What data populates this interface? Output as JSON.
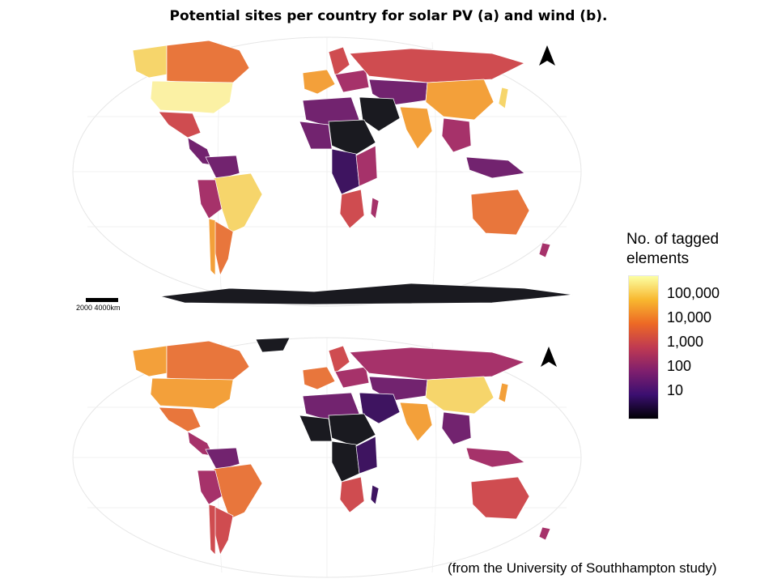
{
  "title": "Potential sites per country for solar PV (a) and wind (b).",
  "scale_bar_label": "2000 4000km",
  "legend": {
    "title_line1": "No. of tagged",
    "title_line2": "elements",
    "labels": [
      "100,000",
      "10,000",
      "1,000",
      "100",
      "10"
    ],
    "gradient_colors": [
      "#fcffa4",
      "#f8b72f",
      "#ed6925",
      "#c03a51",
      "#7f1f6e",
      "#3b0f70",
      "#000004"
    ]
  },
  "credit": "(from the University of Southhampton study)",
  "icons": [
    "north-arrow-icon",
    "north-arrow-icon"
  ],
  "colors": {
    "c0": "#fbf1a4",
    "c1": "#f6d56b",
    "c2": "#f3a03a",
    "c3": "#e8763c",
    "c4": "#cf4c50",
    "c5": "#a6326a",
    "c6": "#72236f",
    "c7": "#3e1460",
    "c8": "#1a1a20"
  }
}
